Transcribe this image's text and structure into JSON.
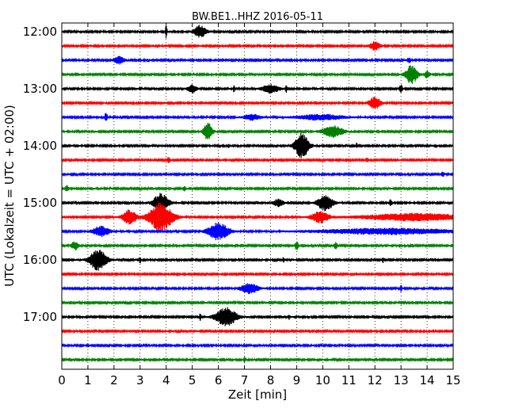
{
  "chart_data": {
    "type": "line",
    "title": "BW.BE1..HHZ 2016-05-11",
    "xlabel": "Zeit  [min]",
    "ylabel": "UTC (Lokalzeit = UTC + 02:00)",
    "xlim": [
      0,
      15
    ],
    "x_ticks": [
      0,
      1,
      2,
      3,
      4,
      5,
      6,
      7,
      8,
      9,
      10,
      11,
      12,
      13,
      14,
      15
    ],
    "x_tick_labels": [
      "0",
      "1",
      "2",
      "3",
      "4",
      "5",
      "6",
      "7",
      "8",
      "9",
      "10",
      "11",
      "12",
      "13",
      "14",
      "15"
    ],
    "y_tick_labels": [
      {
        "trace_index": 0,
        "label": "12:00"
      },
      {
        "trace_index": 4,
        "label": "13:00"
      },
      {
        "trace_index": 8,
        "label": "14:00"
      },
      {
        "trace_index": 12,
        "label": "15:00"
      },
      {
        "trace_index": 16,
        "label": "16:00"
      },
      {
        "trace_index": 20,
        "label": "17:00"
      }
    ],
    "grid": {
      "vertical_dotted": true
    },
    "trace_color_cycle": [
      "#000000",
      "#ff0000",
      "#0000ff",
      "#008000"
    ],
    "traces": [
      {
        "start": "12:00",
        "events": [
          {
            "t": 4.0,
            "a": 0.9,
            "w": 0.05
          },
          {
            "t": 5.3,
            "a": 0.9,
            "w": 0.35
          }
        ]
      },
      {
        "start": "12:15",
        "events": [
          {
            "t": 12.0,
            "a": 0.6,
            "w": 0.3
          }
        ]
      },
      {
        "start": "12:30",
        "events": [
          {
            "t": 2.2,
            "a": 0.5,
            "w": 0.3
          },
          {
            "t": 13.3,
            "a": 0.4,
            "w": 0.1
          }
        ]
      },
      {
        "start": "12:45",
        "events": [
          {
            "t": 13.4,
            "a": 1.3,
            "w": 0.35
          },
          {
            "t": 14.0,
            "a": 0.5,
            "w": 0.15
          }
        ]
      },
      {
        "start": "13:00",
        "events": [
          {
            "t": 5.0,
            "a": 0.6,
            "w": 0.25
          },
          {
            "t": 6.6,
            "a": 0.5,
            "w": 0.05
          },
          {
            "t": 8.0,
            "a": 0.6,
            "w": 0.5
          },
          {
            "t": 8.6,
            "a": 0.7,
            "w": 0.05
          },
          {
            "t": 13.0,
            "a": 0.5,
            "w": 0.1
          }
        ]
      },
      {
        "start": "13:15",
        "events": [
          {
            "t": 12.0,
            "a": 0.8,
            "w": 0.35
          }
        ]
      },
      {
        "start": "13:30",
        "events": [
          {
            "t": 1.7,
            "a": 0.7,
            "w": 0.08
          },
          {
            "t": 7.3,
            "a": 0.4,
            "w": 0.5
          },
          {
            "t": 9.9,
            "a": 0.4,
            "w": 1.3
          }
        ]
      },
      {
        "start": "13:45",
        "events": [
          {
            "t": 5.6,
            "a": 1.3,
            "w": 0.25
          },
          {
            "t": 10.4,
            "a": 0.8,
            "w": 0.6
          }
        ]
      },
      {
        "start": "14:00",
        "events": [
          {
            "t": 6.4,
            "a": 0.3,
            "w": 0.05
          },
          {
            "t": 9.2,
            "a": 1.8,
            "w": 0.4
          },
          {
            "t": 11.3,
            "a": 0.4,
            "w": 0.05
          }
        ]
      },
      {
        "start": "14:15",
        "events": [
          {
            "t": 4.1,
            "a": 0.4,
            "w": 0.1
          },
          {
            "t": 11.7,
            "a": 0.3,
            "w": 0.1
          }
        ]
      },
      {
        "start": "14:30",
        "events": [
          {
            "t": 14.6,
            "a": 0.3,
            "w": 0.1
          }
        ]
      },
      {
        "start": "14:45",
        "events": [
          {
            "t": 0.2,
            "a": 0.5,
            "w": 0.1
          },
          {
            "t": 4.7,
            "a": 0.3,
            "w": 0.1
          }
        ]
      },
      {
        "start": "15:00",
        "events": [
          {
            "t": 3.8,
            "a": 1.3,
            "w": 0.45
          },
          {
            "t": 8.3,
            "a": 0.5,
            "w": 0.3
          },
          {
            "t": 10.1,
            "a": 1.1,
            "w": 0.45
          },
          {
            "t": 12.6,
            "a": 0.4,
            "w": 0.1
          }
        ]
      },
      {
        "start": "15:15",
        "events": [
          {
            "t": 2.6,
            "a": 1.0,
            "w": 0.4
          },
          {
            "t": 3.8,
            "a": 2.0,
            "w": 0.7
          },
          {
            "t": 9.9,
            "a": 0.8,
            "w": 0.5
          },
          {
            "t": 13.5,
            "a": 0.5,
            "w": 3.0
          }
        ]
      },
      {
        "start": "15:30",
        "events": [
          {
            "t": 1.5,
            "a": 0.7,
            "w": 0.5
          },
          {
            "t": 6.0,
            "a": 1.2,
            "w": 0.6
          },
          {
            "t": 12.5,
            "a": 0.4,
            "w": 4.0
          }
        ]
      },
      {
        "start": "15:45",
        "events": [
          {
            "t": 0.5,
            "a": 0.6,
            "w": 0.2
          },
          {
            "t": 9.0,
            "a": 0.6,
            "w": 0.1
          },
          {
            "t": 10.5,
            "a": 0.5,
            "w": 0.1
          }
        ]
      },
      {
        "start": "16:00",
        "events": [
          {
            "t": 1.4,
            "a": 1.5,
            "w": 0.5
          },
          {
            "t": 3.0,
            "a": 0.5,
            "w": 0.05
          },
          {
            "t": 8.5,
            "a": 0.4,
            "w": 0.05
          },
          {
            "t": 12.3,
            "a": 0.4,
            "w": 0.05
          }
        ]
      },
      {
        "start": "16:15",
        "events": []
      },
      {
        "start": "16:30",
        "events": [
          {
            "t": 7.2,
            "a": 0.7,
            "w": 0.5
          },
          {
            "t": 13.0,
            "a": 0.6,
            "w": 0.05
          }
        ]
      },
      {
        "start": "16:45",
        "events": []
      },
      {
        "start": "17:00",
        "events": [
          {
            "t": 5.3,
            "a": 0.5,
            "w": 0.05
          },
          {
            "t": 6.3,
            "a": 1.3,
            "w": 0.6
          },
          {
            "t": 8.7,
            "a": 0.4,
            "w": 0.05
          }
        ]
      },
      {
        "start": "17:15",
        "events": []
      },
      {
        "start": "17:30",
        "events": []
      },
      {
        "start": "17:45",
        "events": [
          {
            "t": 7.0,
            "a": 0.4,
            "w": 0.05
          }
        ]
      }
    ]
  }
}
